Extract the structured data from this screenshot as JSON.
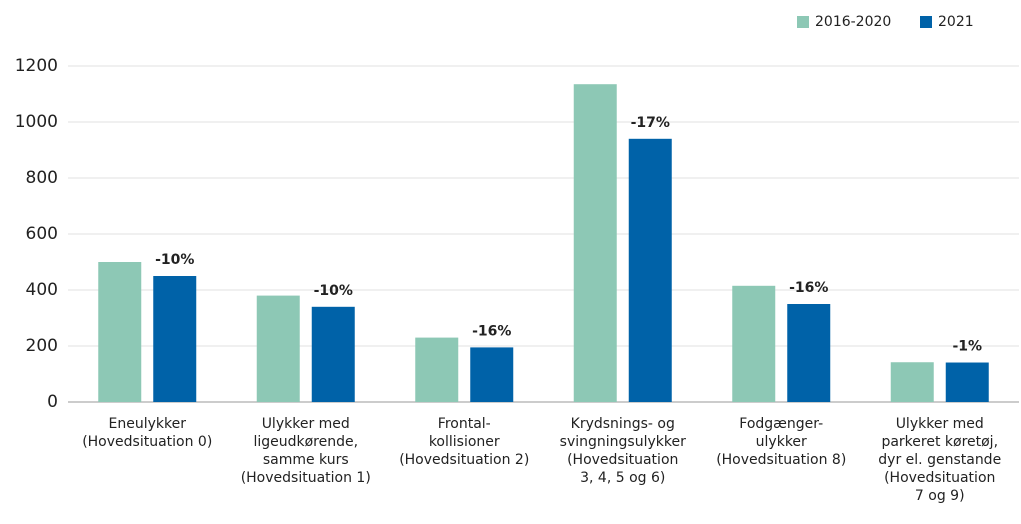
{
  "chart_data": {
    "type": "bar",
    "categories": [
      [
        "Eneulykker",
        "(Hovedsituation 0)"
      ],
      [
        "Ulykker med",
        "ligeudkørende,",
        "samme kurs",
        "(Hovedsituation 1)"
      ],
      [
        "Frontal-",
        "kollisioner",
        "(Hovedsituation 2)"
      ],
      [
        "Krydsnings- og",
        "svingningsulykker",
        "(Hovedsituation",
        "3, 4, 5 og 6)"
      ],
      [
        "Fodgænger-",
        "ulykker",
        "(Hovedsituation 8)"
      ],
      [
        "Ulykker med",
        "parkeret køretøj,",
        "dyr el. genstande",
        "(Hovedsituation",
        "7 og 9)"
      ]
    ],
    "series": [
      {
        "name": "2016-2020",
        "color": "#8dc8b5",
        "values": [
          500,
          380,
          230,
          1135,
          415,
          142
        ]
      },
      {
        "name": "2021",
        "color": "#0062a8",
        "values": [
          450,
          340,
          195,
          940,
          350,
          141
        ],
        "value_labels": [
          "-10%",
          "-10%",
          "-16%",
          "-17%",
          "-16%",
          "-1%"
        ]
      }
    ],
    "ylim": [
      0,
      1200
    ],
    "yticks": [
      0,
      200,
      400,
      600,
      800,
      1000,
      1200
    ],
    "grid": true,
    "legend": "top-right"
  }
}
